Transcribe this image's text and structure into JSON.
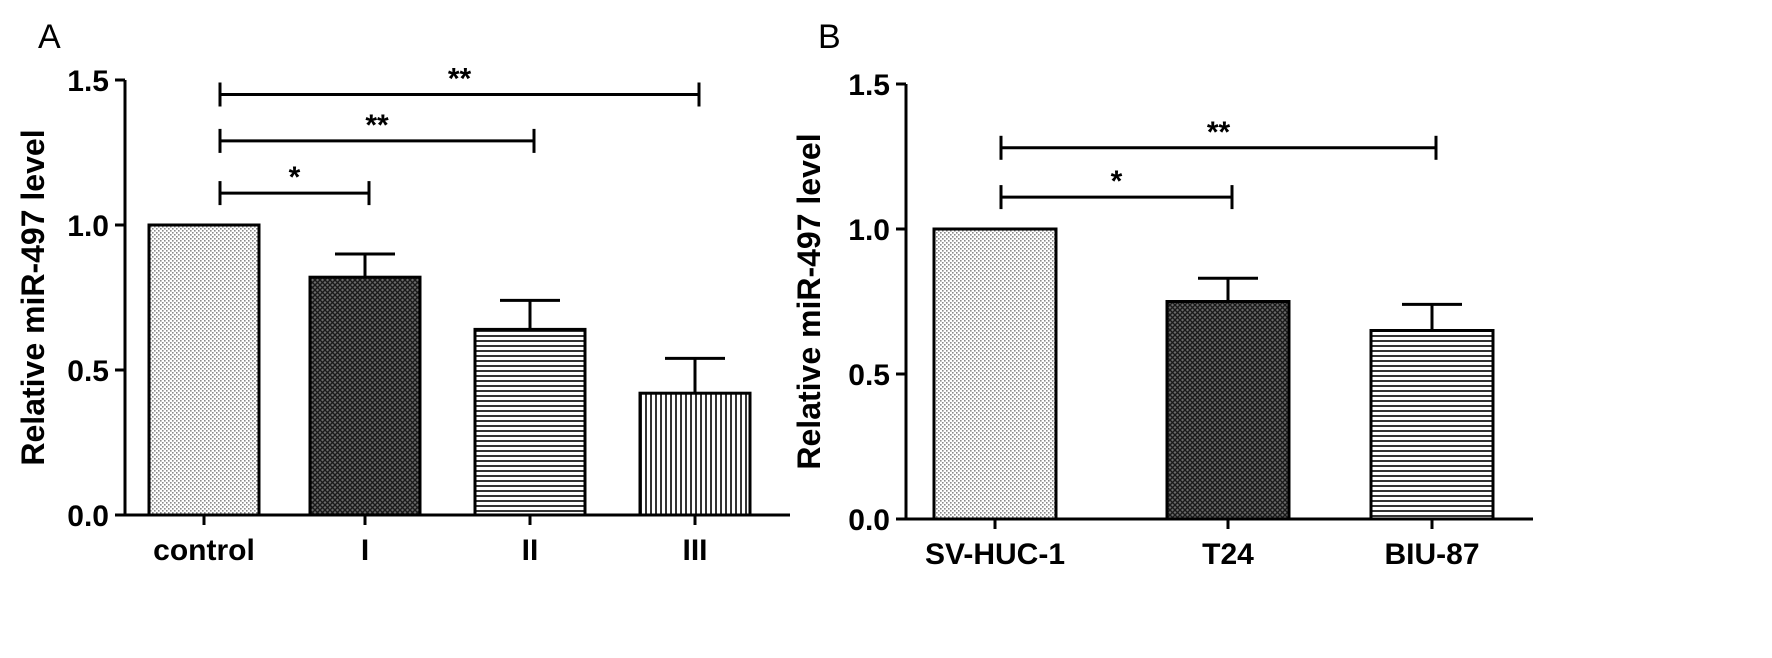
{
  "chart_data": [
    {
      "panel": "A",
      "type": "bar",
      "title": "",
      "xlabel": "",
      "ylabel": "Relative miR-497 level",
      "ylim": [
        0,
        1.5
      ],
      "yticks": [
        "0.0",
        "0.5",
        "1.0",
        "1.5"
      ],
      "categories": [
        "control",
        "I",
        "II",
        "III"
      ],
      "values": [
        1.0,
        0.82,
        0.64,
        0.42
      ],
      "errors": [
        0,
        0.08,
        0.1,
        0.12
      ],
      "patterns": [
        "dots",
        "crosshatch",
        "horizontal",
        "vertical"
      ],
      "significance": [
        {
          "from": 0,
          "to": 1,
          "label": "*"
        },
        {
          "from": 0,
          "to": 2,
          "label": "**"
        },
        {
          "from": 0,
          "to": 3,
          "label": "**"
        }
      ]
    },
    {
      "panel": "B",
      "type": "bar",
      "title": "",
      "xlabel": "",
      "ylabel": "Relative miR-497 level",
      "ylim": [
        0,
        1.5
      ],
      "yticks": [
        "0.0",
        "0.5",
        "1.0",
        "1.5"
      ],
      "categories": [
        "SV-HUC-1",
        "T24",
        "BIU-87"
      ],
      "values": [
        1.0,
        0.75,
        0.65
      ],
      "errors": [
        0,
        0.08,
        0.09
      ],
      "patterns": [
        "dots",
        "crosshatch",
        "horizontal"
      ],
      "significance": [
        {
          "from": 0,
          "to": 1,
          "label": "*"
        },
        {
          "from": 0,
          "to": 2,
          "label": "**"
        }
      ]
    }
  ]
}
